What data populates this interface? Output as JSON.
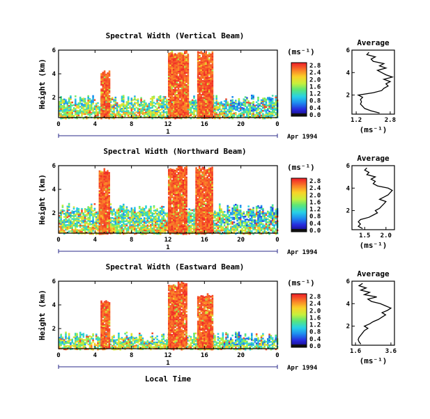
{
  "figure": {
    "x_axis_label": "Local Time",
    "date_label": "Apr 1994",
    "day_label": "1"
  },
  "chart_data": [
    {
      "type": "heatmap",
      "title": "Spectral Width (Vertical Beam)",
      "ylabel": "Height (km)",
      "xlabel": "Local Time",
      "x_ticks": [
        "0",
        "4",
        "8",
        "12",
        "16",
        "20",
        "0"
      ],
      "x_range_hours": [
        0,
        24
      ],
      "y_ticks": [
        "2",
        "4",
        "6"
      ],
      "y_range_km": [
        0.3,
        6.0
      ],
      "colorbar": {
        "unit": "(ms⁻¹)",
        "ticks": [
          "0.0",
          "0.4",
          "0.8",
          "1.2",
          "1.6",
          "2.0",
          "2.4",
          "2.8"
        ],
        "range": [
          0.0,
          2.8
        ]
      },
      "features": [
        {
          "label": "low-level echoes",
          "x_range_hours": [
            0,
            24
          ],
          "top_km": 2.0
        },
        {
          "label": "convective column",
          "x_range_hours": [
            4.6,
            5.5
          ],
          "top_km": 4.3,
          "width_ms": 2.8
        },
        {
          "label": "convective column",
          "x_range_hours": [
            12.0,
            14.2
          ],
          "top_km": 6.0,
          "width_ms": 2.8
        },
        {
          "label": "convective column",
          "x_range_hours": [
            15.2,
            16.8
          ],
          "top_km": 6.0,
          "width_ms": 2.8
        }
      ],
      "average_profile": {
        "title": "Average",
        "xlabel": "(ms⁻¹)",
        "x_ticks": [
          "1.2",
          "2.8"
        ],
        "y_ticks": [
          "2",
          "4",
          "6"
        ],
        "xlim": [
          1.0,
          3.0
        ],
        "ylim": [
          0.3,
          6.0
        ],
        "height_km": [
          0.4,
          0.6,
          0.8,
          1.0,
          1.2,
          1.4,
          1.6,
          1.8,
          2.0,
          2.2,
          2.4,
          2.6,
          2.8,
          3.0,
          3.2,
          3.4,
          3.6,
          3.8,
          4.0,
          4.2,
          4.4,
          4.6,
          4.8,
          5.0,
          5.2,
          5.4,
          5.6,
          5.8
        ],
        "width_ms": [
          2.3,
          1.9,
          1.6,
          1.5,
          1.4,
          1.45,
          1.4,
          1.5,
          1.3,
          2.0,
          2.4,
          2.5,
          2.7,
          2.6,
          2.8,
          2.5,
          2.9,
          2.6,
          2.4,
          2.2,
          2.6,
          2.3,
          2.5,
          2.0,
          1.9,
          2.1,
          1.7,
          1.8
        ]
      }
    },
    {
      "type": "heatmap",
      "title": "Spectral Width (Northward Beam)",
      "ylabel": "Height (km)",
      "xlabel": "Local Time",
      "x_ticks": [
        "0",
        "4",
        "8",
        "12",
        "16",
        "20",
        "0"
      ],
      "x_range_hours": [
        0,
        24
      ],
      "y_ticks": [
        "2",
        "4",
        "6"
      ],
      "y_range_km": [
        0.3,
        6.0
      ],
      "colorbar": {
        "unit": "(ms⁻¹)",
        "ticks": [
          "0.0",
          "0.4",
          "0.8",
          "1.2",
          "1.6",
          "2.0",
          "2.4",
          "2.8"
        ],
        "range": [
          0.0,
          2.8
        ]
      },
      "features": [
        {
          "label": "low-level echoes",
          "x_range_hours": [
            0,
            24
          ],
          "top_km": 2.6
        },
        {
          "label": "convective column",
          "x_range_hours": [
            4.4,
            5.6
          ],
          "top_km": 5.8,
          "width_ms": 2.6
        },
        {
          "label": "convective column",
          "x_range_hours": [
            12.0,
            14.0
          ],
          "top_km": 6.0,
          "width_ms": 2.8
        },
        {
          "label": "convective column",
          "x_range_hours": [
            15.0,
            16.8
          ],
          "top_km": 6.0,
          "width_ms": 2.6
        }
      ],
      "average_profile": {
        "title": "Average",
        "xlabel": "(ms⁻¹)",
        "x_ticks": [
          "1.5",
          "2.0"
        ],
        "y_ticks": [
          "2",
          "4",
          "6"
        ],
        "xlim": [
          1.2,
          2.2
        ],
        "ylim": [
          0.3,
          6.0
        ],
        "height_km": [
          0.4,
          0.6,
          0.8,
          1.0,
          1.2,
          1.4,
          1.6,
          1.8,
          2.0,
          2.2,
          2.4,
          2.6,
          2.8,
          3.0,
          3.2,
          3.4,
          3.6,
          3.8,
          4.0,
          4.2,
          4.4,
          4.6,
          4.8,
          5.0,
          5.2,
          5.4,
          5.6,
          5.8
        ],
        "width_ms": [
          1.45,
          1.35,
          1.4,
          1.35,
          1.4,
          1.6,
          1.7,
          1.8,
          1.75,
          1.85,
          1.9,
          1.95,
          2.0,
          1.85,
          1.95,
          2.05,
          2.1,
          2.15,
          2.05,
          1.8,
          1.7,
          1.75,
          1.65,
          1.75,
          1.55,
          1.6,
          1.5,
          1.55
        ]
      }
    },
    {
      "type": "heatmap",
      "title": "Spectral Width (Eastward Beam)",
      "ylabel": "Height (km)",
      "xlabel": "Local Time",
      "x_ticks": [
        "0",
        "4",
        "8",
        "12",
        "16",
        "20",
        "0"
      ],
      "x_range_hours": [
        0,
        24
      ],
      "y_ticks": [
        "2",
        "4",
        "6"
      ],
      "y_range_km": [
        0.3,
        6.0
      ],
      "colorbar": {
        "unit": "(ms⁻¹)",
        "ticks": [
          "0.0",
          "0.4",
          "0.8",
          "1.2",
          "1.6",
          "2.0",
          "2.4",
          "2.8"
        ],
        "range": [
          0.0,
          2.8
        ]
      },
      "features": [
        {
          "label": "low-level echoes",
          "x_range_hours": [
            0,
            24
          ],
          "top_km": 1.5
        },
        {
          "label": "convective column",
          "x_range_hours": [
            4.6,
            5.6
          ],
          "top_km": 4.4,
          "width_ms": 2.8
        },
        {
          "label": "convective column",
          "x_range_hours": [
            12.0,
            14.0
          ],
          "top_km": 6.0,
          "width_ms": 2.8
        },
        {
          "label": "convective column",
          "x_range_hours": [
            15.2,
            16.8
          ],
          "top_km": 5.0,
          "width_ms": 2.6
        }
      ],
      "average_profile": {
        "title": "Average",
        "xlabel": "(ms⁻¹)",
        "x_ticks": [
          "1.6",
          "3.6"
        ],
        "y_ticks": [
          "2",
          "4",
          "6"
        ],
        "xlim": [
          1.4,
          3.8
        ],
        "ylim": [
          0.3,
          6.0
        ],
        "height_km": [
          0.4,
          0.6,
          0.8,
          1.0,
          1.2,
          1.4,
          1.6,
          1.8,
          2.0,
          2.2,
          2.4,
          2.6,
          2.8,
          3.0,
          3.2,
          3.4,
          3.6,
          3.8,
          4.0,
          4.2,
          4.4,
          4.6,
          4.8,
          5.0,
          5.2,
          5.4,
          5.6,
          5.8
        ],
        "width_ms": [
          1.9,
          1.8,
          1.75,
          1.8,
          1.9,
          2.0,
          2.1,
          2.3,
          2.1,
          2.4,
          2.6,
          2.9,
          3.1,
          3.3,
          3.1,
          3.4,
          3.6,
          3.3,
          3.0,
          2.5,
          2.3,
          2.8,
          2.1,
          2.4,
          1.9,
          2.2,
          1.8,
          2.0
        ]
      }
    }
  ]
}
